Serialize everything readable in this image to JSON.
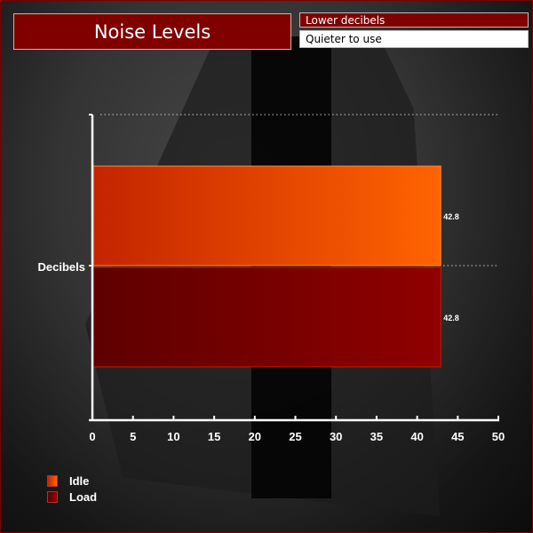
{
  "header": {
    "title": "Noise Levels",
    "subtitle_top": "Lower decibels",
    "subtitle_bottom": "Quieter to use"
  },
  "chart_data": {
    "type": "bar",
    "orientation": "horizontal",
    "categories": [
      "Decibels"
    ],
    "series": [
      {
        "name": "Idle",
        "values": [
          42.8
        ],
        "color": "#ff6000"
      },
      {
        "name": "Load",
        "values": [
          42.8
        ],
        "color": "#8b0000"
      }
    ],
    "data_labels": [
      "42.8",
      "42.8"
    ],
    "xlim": [
      0,
      50
    ],
    "xticks": [
      0,
      5,
      10,
      15,
      20,
      25,
      30,
      35,
      40,
      45,
      50
    ],
    "title": "Noise Levels",
    "grid": "dotted horizontal",
    "legend_placement": "bottom-left"
  },
  "colors": {
    "accent": "#800000",
    "background": "#333333"
  }
}
